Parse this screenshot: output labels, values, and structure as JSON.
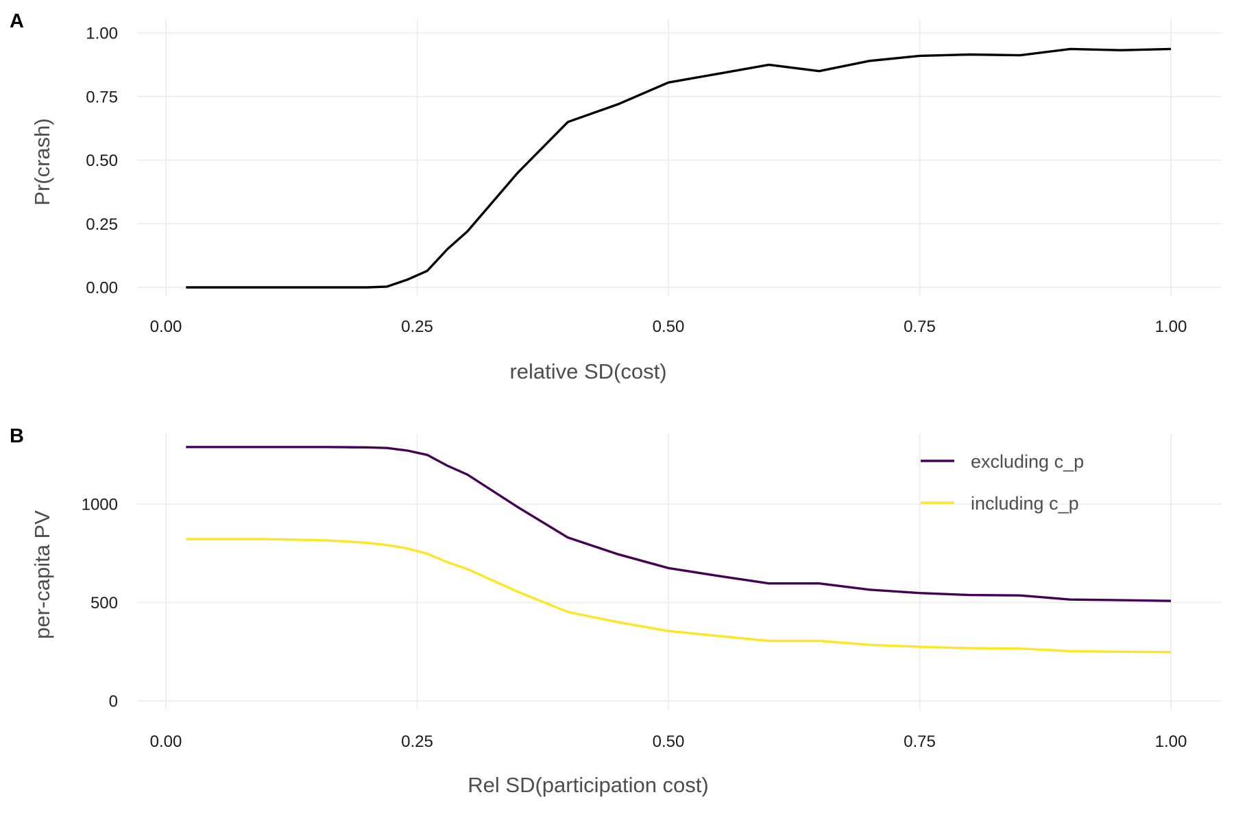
{
  "colors": {
    "panel_a_line": "#000000",
    "excluding": "#440154",
    "including": "#FDE725",
    "grid": "#ebebeb",
    "axis_title": "#4d4d4d",
    "tick_label": "#1a1a1a"
  },
  "chart_data": [
    {
      "panel": "A",
      "type": "line",
      "xlabel": "relative SD(cost)",
      "ylabel": "Pr(crash)",
      "xlim": [
        0,
        1
      ],
      "ylim": [
        0,
        1
      ],
      "x_ticks": [
        "0.00",
        "0.25",
        "0.50",
        "0.75",
        "1.00"
      ],
      "y_ticks": [
        "0.00",
        "0.25",
        "0.50",
        "0.75",
        "1.00"
      ],
      "grid": true,
      "legend": "none",
      "series": [
        {
          "x": [
            0.02,
            0.04,
            0.06,
            0.08,
            0.1,
            0.12,
            0.14,
            0.16,
            0.18,
            0.2,
            0.22,
            0.24,
            0.26,
            0.28,
            0.3,
            0.35,
            0.4,
            0.45,
            0.5,
            0.55,
            0.6,
            0.65,
            0.7,
            0.75,
            0.8,
            0.85,
            0.9,
            0.95,
            1.0
          ],
          "y": [
            0.0,
            0.0,
            0.0,
            0.0,
            0.0,
            0.0,
            0.0,
            0.0,
            0.0,
            0.0,
            0.003,
            0.03,
            0.065,
            0.15,
            0.22,
            0.45,
            0.65,
            0.72,
            0.805,
            0.84,
            0.875,
            0.85,
            0.89,
            0.91,
            0.915,
            0.912,
            0.937,
            0.932,
            0.937
          ]
        }
      ]
    },
    {
      "panel": "B",
      "type": "line",
      "xlabel": "Rel SD(participation cost)",
      "ylabel": "per-capita PV",
      "xlim": [
        0,
        1
      ],
      "ylim": [
        0,
        1330
      ],
      "x_ticks": [
        "0.00",
        "0.25",
        "0.50",
        "0.75",
        "1.00"
      ],
      "y_ticks": [
        "0",
        "500",
        "1000"
      ],
      "grid": true,
      "legend": "top-right",
      "series": [
        {
          "name": "excluding c_p",
          "x": [
            0.02,
            0.04,
            0.06,
            0.08,
            0.1,
            0.12,
            0.14,
            0.16,
            0.18,
            0.2,
            0.22,
            0.24,
            0.26,
            0.28,
            0.3,
            0.35,
            0.4,
            0.45,
            0.5,
            0.55,
            0.6,
            0.65,
            0.7,
            0.75,
            0.8,
            0.85,
            0.9,
            0.95,
            1.0
          ],
          "y": [
            1290,
            1290,
            1290,
            1290,
            1290,
            1290,
            1290,
            1290,
            1289,
            1288,
            1285,
            1272,
            1250,
            1195,
            1150,
            985,
            830,
            745,
            675,
            635,
            597,
            597,
            565,
            548,
            538,
            536,
            515,
            512,
            508
          ]
        },
        {
          "name": "including c_p",
          "x": [
            0.02,
            0.04,
            0.06,
            0.08,
            0.1,
            0.12,
            0.14,
            0.16,
            0.18,
            0.2,
            0.22,
            0.24,
            0.26,
            0.28,
            0.3,
            0.35,
            0.4,
            0.45,
            0.5,
            0.55,
            0.6,
            0.65,
            0.7,
            0.75,
            0.8,
            0.85,
            0.9,
            0.95,
            1.0
          ],
          "y": [
            822,
            822,
            822,
            822,
            822,
            820,
            818,
            815,
            810,
            803,
            792,
            775,
            748,
            705,
            670,
            555,
            452,
            400,
            355,
            330,
            305,
            305,
            285,
            275,
            268,
            266,
            253,
            250,
            248
          ]
        }
      ]
    }
  ]
}
